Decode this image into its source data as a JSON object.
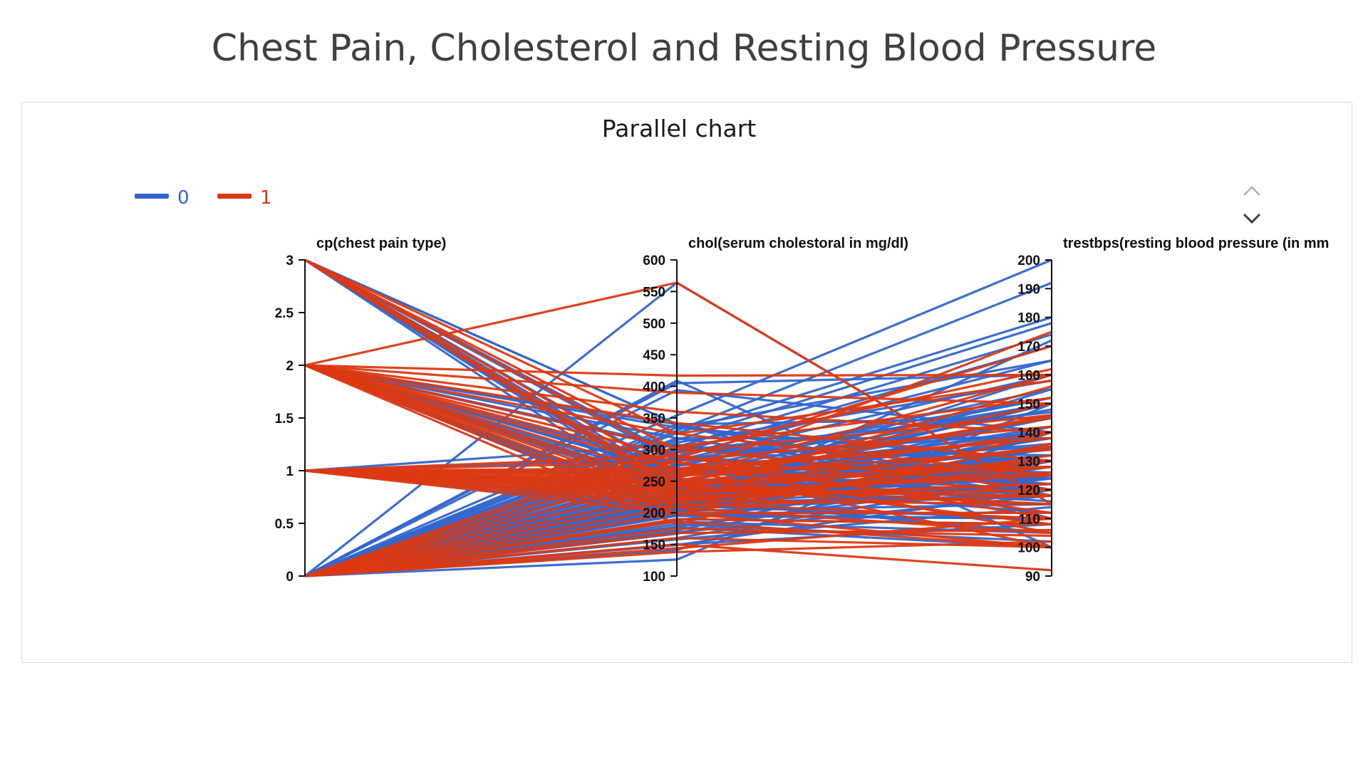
{
  "page": {
    "title": "Chest Pain, Cholesterol and Resting Blood Pressure"
  },
  "colors": {
    "class0": "#3366cc",
    "class1": "#dc3912",
    "card_border": "#d9d9d9",
    "text": "#404040"
  },
  "pager": {
    "up_icon": "chevron-up-icon",
    "down_icon": "chevron-down-icon"
  },
  "chart_data": {
    "type": "parallel",
    "title": "Parallel chart",
    "legend": {
      "placement": "top-left",
      "entries": [
        "0",
        "1"
      ]
    },
    "axes": [
      {
        "label": "cp(chest pain type)",
        "range": [
          0,
          3
        ],
        "ticks": [
          0,
          0.5,
          1,
          1.5,
          2,
          2.5,
          3
        ],
        "tick_labels": [
          "0",
          "0.5",
          "1",
          "1.5",
          "2",
          "2.5",
          "3"
        ]
      },
      {
        "label": "chol(serum cholestoral in mg/dl)",
        "range": [
          100,
          600
        ],
        "ticks": [
          100,
          150,
          200,
          250,
          300,
          350,
          400,
          450,
          500,
          550,
          600
        ],
        "tick_labels": [
          "100",
          "150",
          "200",
          "250",
          "300",
          "350",
          "400",
          "450",
          "500",
          "550",
          "600"
        ]
      },
      {
        "label": "trestbps(resting blood pressure (in mm",
        "range": [
          90,
          200
        ],
        "ticks": [
          90,
          100,
          110,
          120,
          130,
          140,
          150,
          160,
          170,
          180,
          190,
          200
        ],
        "tick_labels": [
          "90",
          "100",
          "110",
          "120",
          "130",
          "140",
          "150",
          "160",
          "170",
          "180",
          "190",
          "200"
        ]
      }
    ],
    "series": [
      {
        "name": "0",
        "color": "#3366cc",
        "lines": [
          [
            3,
            233,
            145
          ],
          [
            3,
            234,
            118
          ],
          [
            3,
            282,
            152
          ],
          [
            3,
            211,
            110
          ],
          [
            3,
            263,
            140
          ],
          [
            3,
            239,
            124
          ],
          [
            3,
            240,
            130
          ],
          [
            3,
            250,
            120
          ],
          [
            3,
            226,
            138
          ],
          [
            3,
            290,
            122
          ],
          [
            3,
            340,
            118
          ],
          [
            3,
            340,
            110
          ],
          [
            2,
            305,
            130
          ],
          [
            2,
            250,
            130
          ],
          [
            2,
            204,
            172
          ],
          [
            2,
            275,
            135
          ],
          [
            2,
            236,
            150
          ],
          [
            2,
            239,
            140
          ],
          [
            2,
            199,
            135
          ],
          [
            2,
            232,
            150
          ],
          [
            2,
            213,
            140
          ],
          [
            2,
            263,
            125
          ],
          [
            2,
            244,
            132
          ],
          [
            2,
            212,
            128
          ],
          [
            2,
            335,
            130
          ],
          [
            2,
            340,
            120
          ],
          [
            2,
            302,
            125
          ],
          [
            2,
            265,
            118
          ],
          [
            2,
            197,
            110
          ],
          [
            2,
            318,
            120
          ],
          [
            1,
            236,
            120
          ],
          [
            1,
            263,
            130
          ],
          [
            1,
            204,
            130
          ],
          [
            1,
            265,
            120
          ],
          [
            1,
            245,
            125
          ],
          [
            1,
            221,
            105
          ],
          [
            1,
            232,
            128
          ],
          [
            1,
            308,
            118
          ],
          [
            1,
            213,
            130
          ],
          [
            1,
            245,
            134
          ],
          [
            1,
            285,
            140
          ],
          [
            1,
            240,
            115
          ],
          [
            0,
            564,
            115
          ],
          [
            0,
            409,
            100
          ],
          [
            0,
            405,
            160
          ],
          [
            0,
            394,
            140
          ],
          [
            0,
            354,
            200
          ],
          [
            0,
            330,
            192
          ],
          [
            0,
            326,
            180
          ],
          [
            0,
            315,
            178
          ],
          [
            0,
            304,
            174
          ],
          [
            0,
            295,
            170
          ],
          [
            0,
            290,
            165
          ],
          [
            0,
            283,
            160
          ],
          [
            0,
            274,
            155
          ],
          [
            0,
            268,
            152
          ],
          [
            0,
            261,
            150
          ],
          [
            0,
            256,
            148
          ],
          [
            0,
            249,
            145
          ],
          [
            0,
            243,
            142
          ],
          [
            0,
            239,
            140
          ],
          [
            0,
            236,
            138
          ],
          [
            0,
            233,
            135
          ],
          [
            0,
            229,
            132
          ],
          [
            0,
            225,
            130
          ],
          [
            0,
            222,
            128
          ],
          [
            0,
            218,
            125
          ],
          [
            0,
            214,
            122
          ],
          [
            0,
            210,
            120
          ],
          [
            0,
            207,
            118
          ],
          [
            0,
            203,
            115
          ],
          [
            0,
            199,
            112
          ],
          [
            0,
            195,
            110
          ],
          [
            0,
            190,
            108
          ],
          [
            0,
            186,
            105
          ],
          [
            0,
            182,
            102
          ],
          [
            0,
            177,
            100
          ],
          [
            0,
            172,
            135
          ],
          [
            0,
            167,
            130
          ],
          [
            0,
            160,
            125
          ],
          [
            0,
            149,
            120
          ],
          [
            0,
            141,
            140
          ],
          [
            0,
            126,
            150
          ],
          [
            0,
            340,
            145
          ],
          [
            0,
            318,
            138
          ],
          [
            0,
            300,
            132
          ],
          [
            0,
            286,
            126
          ],
          [
            0,
            271,
            122
          ],
          [
            0,
            254,
            116
          ],
          [
            0,
            247,
            112
          ],
          [
            0,
            231,
            160
          ],
          [
            0,
            219,
            155
          ],
          [
            0,
            212,
            146
          ],
          [
            0,
            205,
            142
          ],
          [
            0,
            197,
            136
          ],
          [
            0,
            188,
            128
          ],
          [
            0,
            178,
            124
          ],
          [
            0,
            169,
            118
          ],
          [
            0,
            158,
            114
          ],
          [
            0,
            150,
            108
          ],
          [
            0,
            262,
            136
          ],
          [
            0,
            277,
            150
          ],
          [
            0,
            298,
            147
          ],
          [
            0,
            311,
            158
          ],
          [
            0,
            335,
            165
          ],
          [
            0,
            246,
            134
          ],
          [
            0,
            228,
            124
          ],
          [
            0,
            216,
            118
          ]
        ]
      },
      {
        "name": "1",
        "color": "#dc3912",
        "lines": [
          [
            2,
            564,
            115
          ],
          [
            2,
            417,
            160
          ],
          [
            2,
            390,
            150
          ],
          [
            2,
            360,
            140
          ],
          [
            2,
            342,
            130
          ],
          [
            2,
            325,
            125
          ],
          [
            2,
            303,
            120
          ],
          [
            2,
            290,
            110
          ],
          [
            2,
            280,
            105
          ],
          [
            2,
            270,
            100
          ],
          [
            2,
            255,
            108
          ],
          [
            2,
            243,
            115
          ],
          [
            2,
            235,
            118
          ],
          [
            2,
            226,
            122
          ],
          [
            2,
            218,
            128
          ],
          [
            2,
            208,
            132
          ],
          [
            2,
            198,
            136
          ],
          [
            2,
            182,
            140
          ],
          [
            3,
            325,
            158
          ],
          [
            3,
            300,
            162
          ],
          [
            3,
            286,
            170
          ],
          [
            3,
            260,
            145
          ],
          [
            3,
            244,
            128
          ],
          [
            3,
            236,
            118
          ],
          [
            1,
            260,
            175
          ],
          [
            1,
            255,
            160
          ],
          [
            1,
            250,
            150
          ],
          [
            1,
            245,
            140
          ],
          [
            1,
            240,
            135
          ],
          [
            1,
            235,
            130
          ],
          [
            1,
            230,
            125
          ],
          [
            1,
            225,
            120
          ],
          [
            1,
            220,
            115
          ],
          [
            1,
            215,
            110
          ],
          [
            1,
            208,
            105
          ],
          [
            1,
            200,
            100
          ],
          [
            1,
            280,
            112
          ],
          [
            1,
            290,
            118
          ],
          [
            1,
            270,
            128
          ],
          [
            1,
            265,
            138
          ],
          [
            1,
            248,
            146
          ],
          [
            1,
            232,
            156
          ],
          [
            0,
            150,
            92
          ],
          [
            0,
            160,
            100
          ],
          [
            0,
            175,
            104
          ],
          [
            0,
            190,
            108
          ],
          [
            0,
            200,
            112
          ],
          [
            0,
            210,
            118
          ],
          [
            0,
            222,
            122
          ],
          [
            0,
            232,
            126
          ],
          [
            0,
            245,
            130
          ],
          [
            0,
            258,
            134
          ],
          [
            0,
            270,
            138
          ],
          [
            0,
            282,
            142
          ],
          [
            0,
            295,
            146
          ],
          [
            0,
            305,
            152
          ],
          [
            0,
            138,
            102
          ],
          [
            0,
            144,
            110
          ],
          [
            0,
            168,
            106
          ],
          [
            0,
            186,
            100
          ]
        ]
      }
    ]
  }
}
